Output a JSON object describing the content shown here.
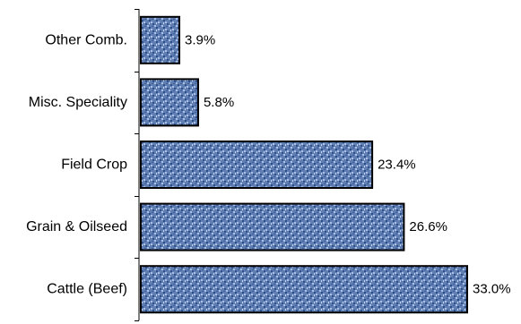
{
  "chart_data": {
    "type": "bar",
    "orientation": "horizontal",
    "categories": [
      "Other Comb.",
      "Misc. Speciality",
      "Field Crop",
      "Grain & Oilseed",
      "Cattle (Beef)"
    ],
    "values": [
      3.9,
      5.8,
      23.4,
      26.6,
      33.0
    ],
    "value_labels": [
      "3.9%",
      "5.8%",
      "23.4%",
      "26.6%",
      "33.0%"
    ],
    "xlim": [
      0,
      33.0
    ],
    "grid": false,
    "legend": "none"
  },
  "colors": {
    "bar_fill": "#5f7fb4",
    "bar_texture_dark": "#2f4f86",
    "bar_texture_light": "#a9c0e4",
    "bar_stroke": "#000000",
    "axis": "#000000"
  }
}
